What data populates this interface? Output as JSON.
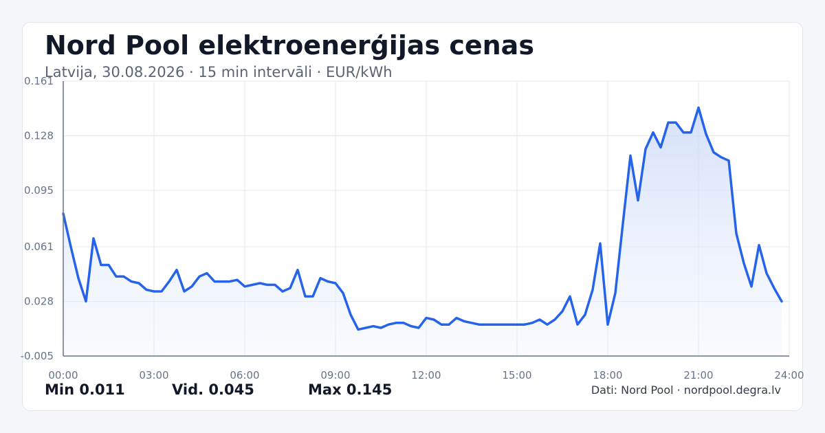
{
  "header": {
    "title": "Nord Pool elektroenerģijas cenas",
    "subtitle": "Latvija, 30.08.2026 · 15 min intervāli · EUR/kWh"
  },
  "stats": {
    "min": "Min 0.011",
    "avg": "Vid. 0.045",
    "max": "Max 0.145"
  },
  "source": "Dati: Nord Pool · nordpool.degra.lv",
  "colors": {
    "line": "#2563eb",
    "fill_top": "#c7d6f7",
    "grid": "#e5e7eb",
    "axis": "#64748b"
  },
  "chart_data": {
    "type": "area",
    "title": "Nord Pool elektroenerģijas cenas",
    "xlabel": "",
    "ylabel": "",
    "ylim": [
      -0.005,
      0.161
    ],
    "xlim": [
      0,
      24
    ],
    "y_ticks": [
      "0.161",
      "0.128",
      "0.095",
      "0.061",
      "0.028",
      "-0.005"
    ],
    "y_tick_values": [
      0.161,
      0.128,
      0.095,
      0.061,
      0.028,
      -0.005
    ],
    "x_ticks": [
      "00:00",
      "03:00",
      "06:00",
      "09:00",
      "12:00",
      "15:00",
      "18:00",
      "21:00",
      "24:00"
    ],
    "x_tick_hours": [
      0,
      3,
      6,
      9,
      12,
      15,
      18,
      21,
      24
    ],
    "grid": true,
    "legend": "none",
    "series": [
      {
        "x": [
          0,
          0.25,
          0.5,
          0.75,
          1,
          1.25,
          1.5,
          1.75,
          2,
          2.25,
          2.5,
          2.75,
          3,
          3.25,
          3.5,
          3.75,
          4,
          4.25,
          4.5,
          4.75,
          5,
          5.25,
          5.5,
          5.75,
          6,
          6.25,
          6.5,
          6.75,
          7,
          7.25,
          7.5,
          7.75,
          8,
          8.25,
          8.5,
          8.75,
          9,
          9.25,
          9.5,
          9.75,
          10,
          10.25,
          10.5,
          10.75,
          11,
          11.25,
          11.5,
          11.75,
          12,
          12.25,
          12.5,
          12.75,
          13,
          13.25,
          13.5,
          13.75,
          14,
          14.25,
          14.5,
          14.75,
          15,
          15.25,
          15.5,
          15.75,
          16,
          16.25,
          16.5,
          16.75,
          17,
          17.25,
          17.5,
          17.75,
          18,
          18.25,
          18.5,
          18.75,
          19,
          19.25,
          19.5,
          19.75,
          20,
          20.25,
          20.5,
          20.75,
          21,
          21.25,
          21.5,
          21.75,
          22,
          22.25,
          22.5,
          22.75,
          23,
          23.25,
          23.5,
          23.75
        ],
        "values": [
          0.081,
          0.061,
          0.042,
          0.028,
          0.066,
          0.05,
          0.05,
          0.043,
          0.043,
          0.04,
          0.039,
          0.035,
          0.034,
          0.034,
          0.04,
          0.047,
          0.034,
          0.037,
          0.043,
          0.045,
          0.04,
          0.04,
          0.04,
          0.041,
          0.037,
          0.038,
          0.039,
          0.038,
          0.038,
          0.034,
          0.036,
          0.047,
          0.031,
          0.031,
          0.042,
          0.04,
          0.039,
          0.033,
          0.02,
          0.011,
          0.012,
          0.013,
          0.012,
          0.014,
          0.015,
          0.015,
          0.013,
          0.012,
          0.018,
          0.017,
          0.014,
          0.014,
          0.018,
          0.016,
          0.015,
          0.014,
          0.014,
          0.014,
          0.014,
          0.014,
          0.014,
          0.014,
          0.015,
          0.017,
          0.014,
          0.017,
          0.022,
          0.031,
          0.014,
          0.02,
          0.035,
          0.063,
          0.014,
          0.033,
          0.075,
          0.116,
          0.089,
          0.12,
          0.13,
          0.121,
          0.136,
          0.136,
          0.13,
          0.13,
          0.145,
          0.129,
          0.118,
          0.115,
          0.113,
          0.069,
          0.051,
          0.037,
          0.062,
          0.045,
          0.036,
          0.028
        ]
      }
    ]
  }
}
